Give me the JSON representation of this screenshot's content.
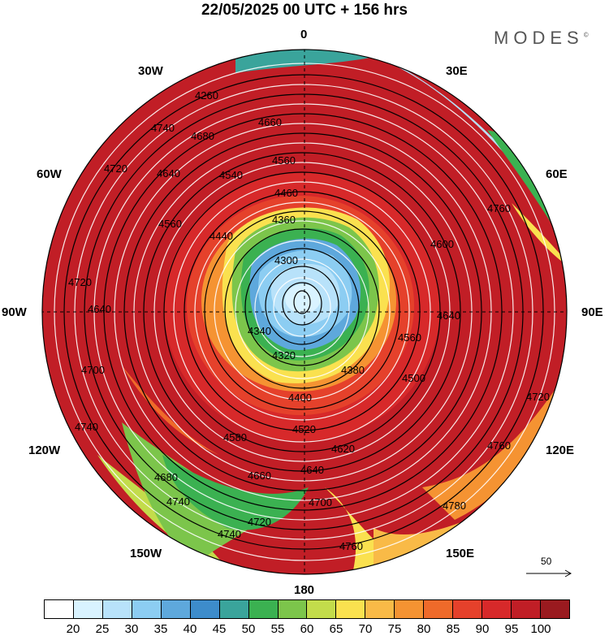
{
  "title": "22/05/2025  00 UTC  + 156 hrs",
  "brand": "MODES",
  "brand_mark": "©",
  "longitude_labels": {
    "top": "0",
    "bottom": "180",
    "left": "90W",
    "right": "90E",
    "upper_left_1": "30W",
    "upper_left_2": "60W",
    "upper_right_1": "30E",
    "upper_right_2": "60E",
    "lower_left_1": "120W",
    "lower_left_2": "150W",
    "lower_right_1": "120E",
    "lower_right_2": "150E"
  },
  "wind_reference": {
    "value": "50",
    "icon": "arrow-right-icon"
  },
  "contour_labels": [
    "4260",
    "4740",
    "4680",
    "4660",
    "4720",
    "4640",
    "4540",
    "4560",
    "4460",
    "4360",
    "4300",
    "4440",
    "4380",
    "4340",
    "4320",
    "4400",
    "4500",
    "4520",
    "4580",
    "4620",
    "4700",
    "4760",
    "4780",
    "4560",
    "4600"
  ],
  "colorbar": {
    "colors": [
      "#ffffff",
      "#d9f3ff",
      "#b8e2fa",
      "#8ccdf2",
      "#5ea8dc",
      "#3d8ccb",
      "#3aa49b",
      "#3bb151",
      "#7cc54b",
      "#c3dc4b",
      "#fae14f",
      "#f9ba47",
      "#f59332",
      "#ef6a2a",
      "#e5412b",
      "#d7292a",
      "#c01e26",
      "#9a1a1f"
    ],
    "ticks": [
      "20",
      "25",
      "30",
      "35",
      "40",
      "45",
      "50",
      "55",
      "60",
      "65",
      "70",
      "75",
      "80",
      "85",
      "90",
      "95",
      "100"
    ]
  }
}
